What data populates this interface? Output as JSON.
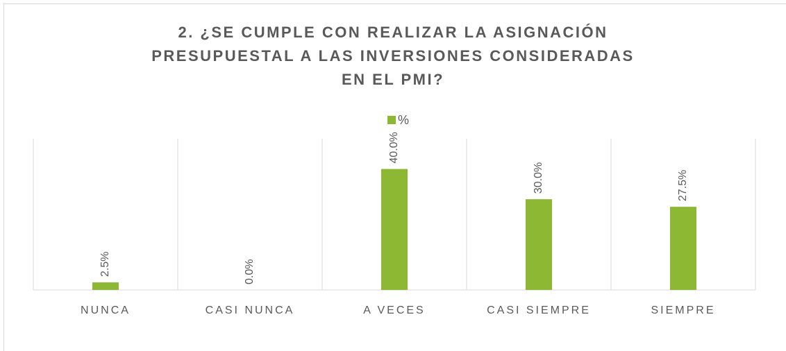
{
  "chart_data": {
    "type": "bar",
    "title": "2. ¿SE CUMPLE CON REALIZAR LA ASIGNACIÓN PRESUPUESTAL A LAS INVERSIONES CONSIDERADAS EN EL PMI?",
    "categories": [
      "NUNCA",
      "CASI NUNCA",
      "A VECES",
      "CASI SIEMPRE",
      "SIEMPRE"
    ],
    "series": [
      {
        "name": "%",
        "color": "#8cb833",
        "values": [
          2.5,
          0,
          40,
          30,
          27.5
        ],
        "value_labels": [
          "2.5%",
          "0.0%",
          "40.0%",
          "30.0%",
          "27.5%"
        ]
      }
    ],
    "ylim": [
      0,
      50
    ],
    "legend": "top",
    "grid": true
  }
}
